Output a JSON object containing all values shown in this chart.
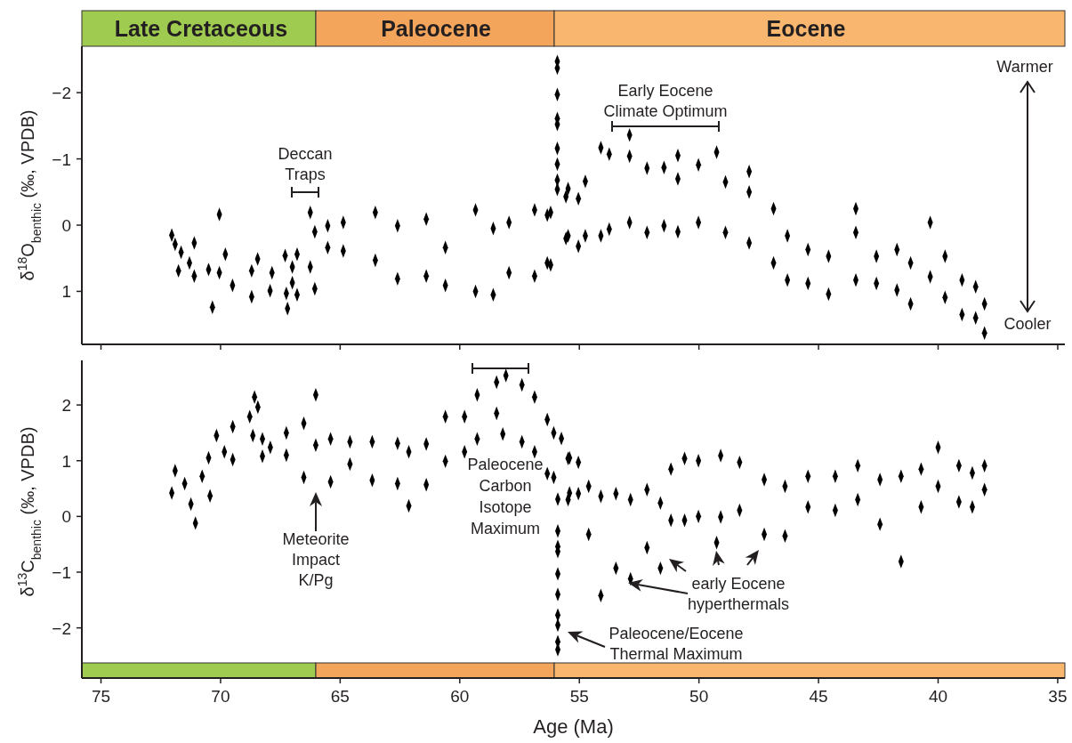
{
  "chart_data": [
    {
      "type": "scatter",
      "ylabel": "δ$^{18}$O$_{benthic}$ (‰, VPDB)",
      "xlim": [
        75.8,
        34.7
      ],
      "xticks": [
        75,
        70,
        65,
        60,
        55,
        50,
        45,
        40,
        35
      ],
      "ylim": [
        1.8,
        -2.7
      ],
      "yticks": [
        -2,
        -1,
        0,
        1
      ],
      "tick_labels": "y",
      "marker": "diamond",
      "annotations": [
        "Deccan\nTraps",
        "Early Eocene\nClimate Optimum",
        "Warmer",
        "Cooler",
        "Late Cretaceous",
        "Paleocene",
        "Eocene"
      ],
      "series": [
        {
          "color": "#000000",
          "x": [
            72.04,
            71.9,
            71.65,
            71.76,
            71.1,
            71.3,
            71.1,
            70.5,
            70.05,
            70.34,
            70.05,
            69.8,
            69.5,
            68.7,
            68.45,
            68.7,
            67.93,
            67.85,
            67.3,
            67.2,
            67.25,
            67.0,
            67.0,
            66.8,
            66.8,
            66.25,
            66.25,
            66.06,
            66.06,
            65.52,
            65.52,
            64.87,
            64.87,
            63.53,
            63.53,
            62.6,
            62.6,
            61.4,
            61.4,
            60.6,
            60.6,
            59.34,
            59.34,
            58.6,
            58.6,
            57.94,
            57.94,
            56.87,
            56.87,
            56.2,
            56.2,
            55.92,
            55.92,
            55.92,
            55.92,
            55.92,
            55.92,
            55.92,
            55.92,
            55.92,
            55.56,
            55.56,
            56.34,
            56.34,
            55.47,
            55.47,
            55.04,
            55.04,
            54.75,
            54.75,
            54.1,
            54.1,
            53.75,
            53.75,
            52.9,
            52.9,
            52.9,
            52.17,
            52.17,
            51.46,
            51.46,
            50.88,
            50.88,
            50.88,
            50.02,
            50.02,
            49.26,
            48.89,
            48.89,
            47.9,
            47.9,
            47.9,
            46.88,
            46.88,
            46.3,
            46.3,
            45.44,
            45.44,
            44.58,
            44.58,
            43.44,
            43.44,
            43.44,
            42.58,
            42.58,
            41.72,
            41.72,
            41.15,
            41.15,
            40.33,
            40.33,
            39.71,
            39.71,
            39.0,
            39.0,
            38.43,
            38.43,
            38.06,
            38.06
          ],
          "values": [
            0.15,
            0.29,
            0.41,
            0.69,
            0.27,
            0.57,
            0.77,
            0.67,
            -0.16,
            1.24,
            0.72,
            0.44,
            0.91,
            0.69,
            0.51,
            1.08,
            0.99,
            0.72,
            0.46,
            1.26,
            1.03,
            0.63,
            0.87,
            0.44,
            1.05,
            -0.19,
            0.63,
            0.1,
            0.96,
            0.01,
            0.34,
            -0.04,
            0.39,
            -0.19,
            0.53,
            0.01,
            0.81,
            -0.09,
            0.77,
            0.34,
            0.91,
            -0.23,
            1.0,
            0.05,
            1.05,
            -0.04,
            0.72,
            -0.23,
            0.77,
            -0.19,
            0.6,
            -2.47,
            -2.37,
            -1.97,
            -1.61,
            -1.52,
            -1.16,
            -0.92,
            -0.68,
            -0.54,
            -0.43,
            0.2,
            -0.15,
            0.57,
            -0.55,
            0.16,
            -0.4,
            0.32,
            -0.66,
            0.16,
            -1.17,
            0.16,
            -1.07,
            0.06,
            -1.36,
            -1.04,
            -0.04,
            -0.86,
            0.11,
            -0.87,
            0.01,
            -1.05,
            -0.7,
            0.1,
            -0.91,
            -0.04,
            -1.1,
            -0.65,
            0.11,
            -0.81,
            -0.5,
            0.27,
            -0.25,
            0.57,
            0.16,
            0.83,
            0.37,
            0.88,
            0.47,
            1.04,
            -0.25,
            0.11,
            0.83,
            0.47,
            0.88,
            0.37,
            0.98,
            0.57,
            1.19,
            -0.04,
            0.78,
            0.47,
            1.09,
            0.83,
            1.35,
            0.93,
            1.4,
            1.19,
            1.63
          ]
        }
      ]
    },
    {
      "type": "scatter",
      "xlabel": "Age (Ma)",
      "ylabel": "δ$^{13}$C$_{benthic}$ (‰, VPDB)",
      "xlim": [
        75.8,
        34.7
      ],
      "xticks": [
        75,
        70,
        65,
        60,
        55,
        50,
        45,
        40,
        35
      ],
      "ylim": [
        -2.9,
        2.8
      ],
      "yticks": [
        -2,
        -1,
        0,
        1,
        2
      ],
      "marker": "diamond",
      "annotations": [
        "Paleocene\nCarbon\nIsotope\nMaximum",
        "Meteorite\nImpact\nK/Pg",
        "early Eocene\nhyperthermals",
        "Paleocene/Eocene\nThermal Maximum"
      ],
      "series": [
        {
          "color": "#000000",
          "x": [
            71.9,
            72.04,
            71.5,
            71.24,
            71.05,
            70.77,
            70.5,
            70.44,
            70.17,
            69.84,
            69.49,
            69.49,
            68.58,
            68.44,
            68.78,
            68.65,
            68.25,
            68.25,
            67.92,
            67.25,
            67.25,
            66.52,
            66.52,
            66.02,
            66.02,
            65.4,
            65.4,
            64.59,
            64.59,
            63.66,
            63.66,
            62.6,
            62.6,
            62.13,
            62.13,
            61.4,
            61.4,
            60.6,
            60.6,
            59.8,
            59.8,
            59.27,
            59.27,
            58.46,
            58.46,
            58.2,
            58.07,
            57.4,
            57.4,
            56.87,
            56.87,
            56.34,
            56.34,
            56.07,
            56.07,
            55.9,
            55.9,
            55.9,
            55.9,
            55.9,
            55.9,
            55.9,
            55.9,
            55.9,
            55.9,
            55.41,
            55.41,
            55.75,
            55.47,
            55.47,
            55.04,
            55.04,
            54.61,
            54.61,
            54.1,
            54.1,
            53.47,
            53.47,
            52.86,
            52.86,
            52.17,
            52.17,
            51.61,
            51.61,
            51.17,
            51.17,
            50.6,
            50.6,
            50.02,
            50.02,
            49.26,
            49.09,
            49.09,
            48.3,
            48.3,
            47.27,
            47.27,
            46.4,
            46.4,
            45.44,
            45.44,
            44.3,
            44.3,
            43.36,
            43.36,
            42.43,
            42.43,
            41.55,
            41.55,
            40.71,
            40.71,
            40.0,
            40.0,
            39.13,
            39.13,
            38.57,
            38.57,
            38.06,
            38.06
          ],
          "values": [
            0.82,
            0.42,
            0.59,
            0.22,
            -0.12,
            0.72,
            1.05,
            0.37,
            1.45,
            1.16,
            1.61,
            1.02,
            2.14,
            1.96,
            1.79,
            1.45,
            1.39,
            1.08,
            1.24,
            1.5,
            1.1,
            1.67,
            0.7,
            2.18,
            1.28,
            1.39,
            0.62,
            1.34,
            0.94,
            1.34,
            0.65,
            1.31,
            0.59,
            1.16,
            0.19,
            1.3,
            0.57,
            1.79,
            0.99,
            1.79,
            1.16,
            2.18,
            1.39,
            2.41,
            1.85,
            1.48,
            2.53,
            2.36,
            1.34,
            2.14,
            1.16,
            1.74,
            0.77,
            1.5,
            0.7,
            0.31,
            -0.26,
            -0.54,
            -0.63,
            -1.03,
            -1.4,
            -1.77,
            -1.95,
            -2.25,
            -2.39,
            1.05,
            0.42,
            1.4,
            1.04,
            0.3,
            0.97,
            0.41,
            0.54,
            -0.32,
            0.36,
            -1.42,
            0.41,
            -0.93,
            0.3,
            -1.12,
            0.48,
            -0.56,
            0.24,
            -0.93,
            0.85,
            -0.07,
            1.04,
            -0.07,
            1.0,
            0.0,
            -0.47,
            1.09,
            -0.01,
            0.97,
            0.11,
            0.66,
            -0.32,
            0.54,
            -0.35,
            0.72,
            0.17,
            0.72,
            0.11,
            0.91,
            0.3,
            0.66,
            -0.14,
            0.72,
            -0.81,
            0.85,
            0.17,
            1.24,
            0.54,
            0.91,
            0.26,
            0.78,
            0.17,
            0.91,
            0.48
          ]
        }
      ]
    }
  ]
}
